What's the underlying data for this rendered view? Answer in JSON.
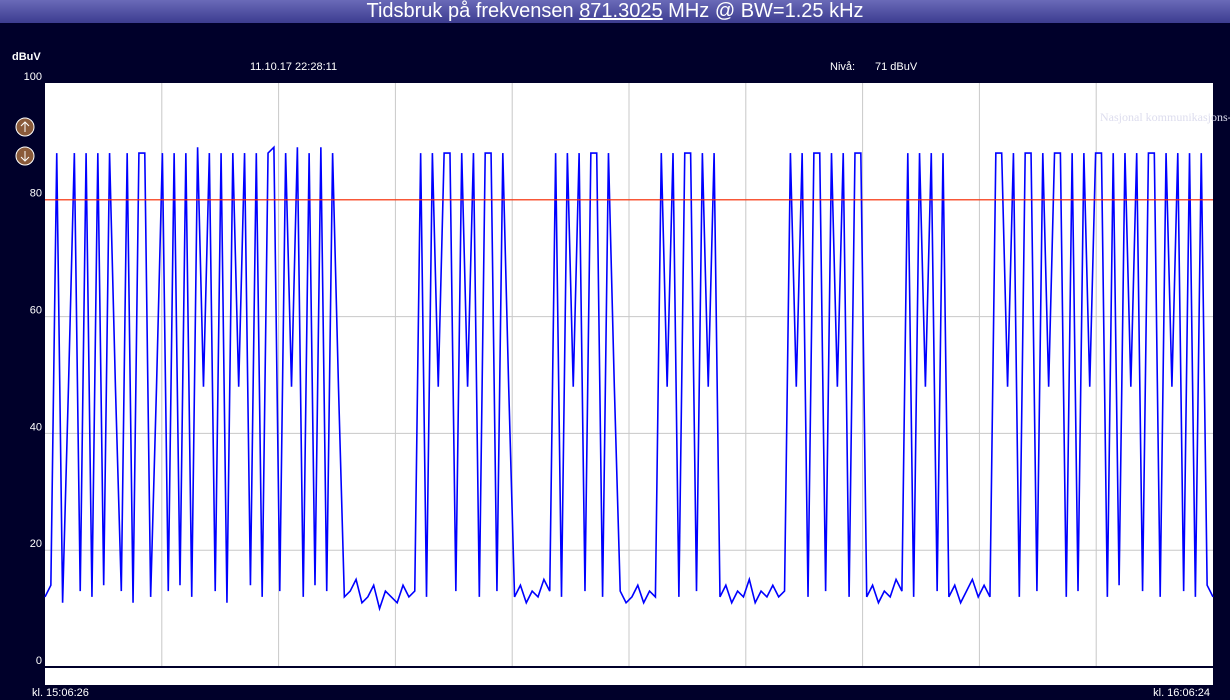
{
  "header": {
    "title_prefix": "Tidsbruk på frekvensen",
    "frequency": "871.3025",
    "title_suffix": "MHz @ BW=1.25 kHz",
    "timestamp": "11.10.17 22:28:11",
    "level_label": "Nivå:",
    "level_value": "71 dBuV",
    "watermark": "Nasjonal kommunikasjons-myndighet"
  },
  "chart_data": {
    "type": "line",
    "ylabel": "dBuV",
    "ylim": [
      0,
      100
    ],
    "yticks": [
      0,
      20,
      40,
      60,
      80,
      100
    ],
    "grid": true,
    "threshold": 80,
    "threshold_color": "#ff2a00",
    "x_start": "kl. 15:06:26",
    "x_end": "kl. 16:06:24",
    "series": [
      {
        "name": "dBuV",
        "color": "#0000ff",
        "values": [
          12,
          14,
          88,
          11,
          48,
          88,
          13,
          88,
          12,
          88,
          14,
          88,
          48,
          13,
          88,
          11,
          88,
          88,
          12,
          48,
          88,
          13,
          88,
          14,
          88,
          12,
          89,
          48,
          88,
          13,
          88,
          11,
          88,
          48,
          88,
          14,
          88,
          12,
          88,
          89,
          13,
          88,
          48,
          89,
          12,
          88,
          14,
          89,
          13,
          88,
          48,
          12,
          13,
          15,
          11,
          12,
          14,
          10,
          13,
          12,
          11,
          14,
          12,
          13,
          88,
          12,
          88,
          48,
          88,
          88,
          13,
          88,
          48,
          88,
          12,
          88,
          88,
          13,
          88,
          48,
          12,
          14,
          11,
          13,
          12,
          15,
          13,
          88,
          12,
          88,
          48,
          88,
          13,
          88,
          88,
          12,
          88,
          48,
          13,
          11,
          12,
          14,
          11,
          13,
          12,
          88,
          48,
          88,
          12,
          88,
          88,
          13,
          88,
          48,
          88,
          12,
          14,
          11,
          13,
          12,
          15,
          11,
          13,
          12,
          14,
          12,
          13,
          88,
          48,
          88,
          12,
          88,
          88,
          13,
          88,
          48,
          88,
          12,
          88,
          88,
          12,
          14,
          11,
          13,
          12,
          15,
          13,
          88,
          12,
          88,
          48,
          88,
          13,
          88,
          12,
          14,
          11,
          13,
          15,
          12,
          14,
          12,
          88,
          88,
          48,
          88,
          12,
          88,
          88,
          13,
          88,
          48,
          88,
          88,
          12,
          88,
          13,
          88,
          48,
          88,
          88,
          12,
          88,
          14,
          88,
          48,
          88,
          13,
          88,
          88,
          12,
          88,
          48,
          88,
          13,
          88,
          12,
          88,
          14,
          12
        ]
      }
    ]
  }
}
